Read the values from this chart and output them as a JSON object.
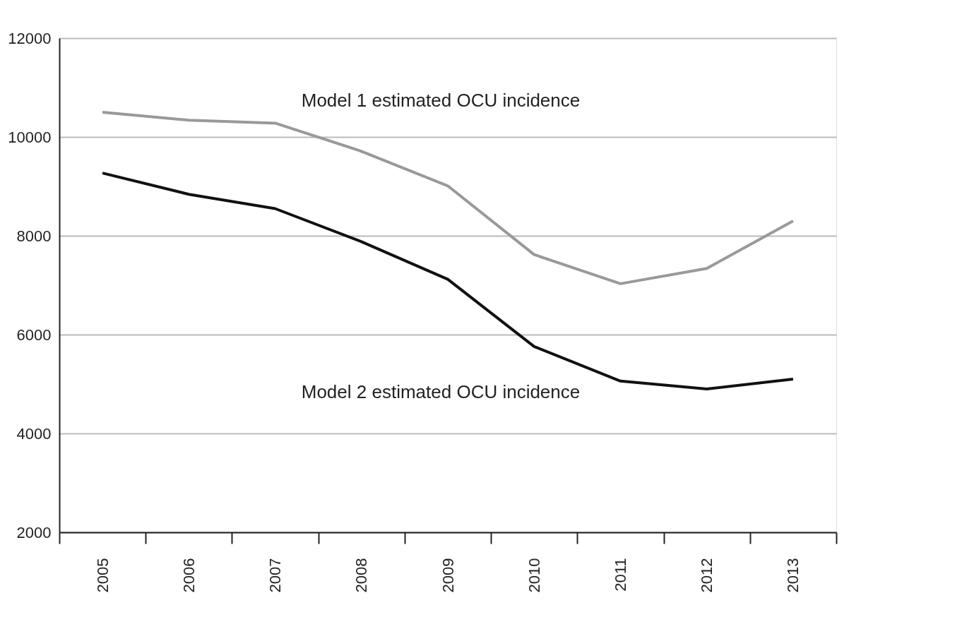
{
  "chart_data": {
    "type": "line",
    "categories": [
      "2005",
      "2006",
      "2007",
      "2008",
      "2009",
      "2010",
      "2011",
      "2012",
      "2013"
    ],
    "series": [
      {
        "name": "Model 1 estimated OCU incidence",
        "color": "#999999",
        "values": [
          10500,
          10340,
          10280,
          9710,
          9010,
          7620,
          7030,
          7340,
          8300
        ]
      },
      {
        "name": "Model 2 estimated OCU incidence",
        "color": "#111111",
        "values": [
          9270,
          8840,
          8550,
          7880,
          7120,
          5760,
          5060,
          4900,
          5100
        ]
      }
    ],
    "ylim": [
      2000,
      12000
    ],
    "yticks": [
      2000,
      4000,
      6000,
      8000,
      10000,
      12000
    ],
    "grid": "y",
    "legend": false,
    "marker": "none",
    "line_style": "solid"
  }
}
